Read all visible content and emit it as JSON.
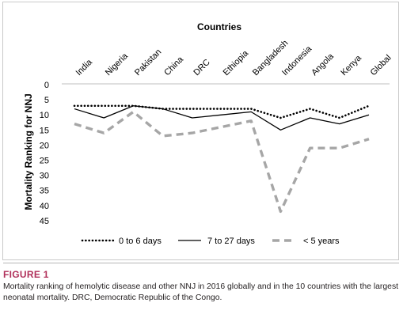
{
  "figure": {
    "label": "FIGURE 1",
    "caption": "Mortality ranking of hemolytic disease and other NNJ in 2016 globally and in the 10 countries with the largest neonatal mortality. DRC, Democratic Republic of the Congo."
  },
  "chart_data": {
    "type": "line",
    "title": "Countries",
    "xlabel": "",
    "ylabel": "Mortality Ranking for NNJ",
    "categories": [
      "India",
      "Nigeria",
      "Pakistan",
      "China",
      "DRC",
      "Ethiopia",
      "Bangladesh",
      "Indonesia",
      "Angola",
      "Kenya",
      "Global"
    ],
    "y_ticks": [
      "0",
      "5",
      "10",
      "15",
      "20",
      "25",
      "30",
      "35",
      "40",
      "45"
    ],
    "ylim": [
      0,
      45
    ],
    "y_reversed": true,
    "x_axis_position": "top",
    "grid": false,
    "legend_position": "bottom",
    "series": [
      {
        "name": "0 to 6 days",
        "style": "dotted",
        "color": "#000000",
        "values": [
          7,
          7,
          7,
          8,
          8,
          8,
          8,
          11,
          8,
          11,
          7
        ]
      },
      {
        "name": "7 to 27 days",
        "style": "solid",
        "color": "#000000",
        "values": [
          8,
          11,
          7,
          8,
          11,
          10,
          9,
          15,
          11,
          13,
          10
        ]
      },
      {
        "name": "< 5 years",
        "style": "dashed",
        "color": "#a6a6a6",
        "values": [
          13,
          16,
          9,
          17,
          16,
          14,
          12,
          42,
          21,
          21,
          18
        ]
      }
    ]
  }
}
